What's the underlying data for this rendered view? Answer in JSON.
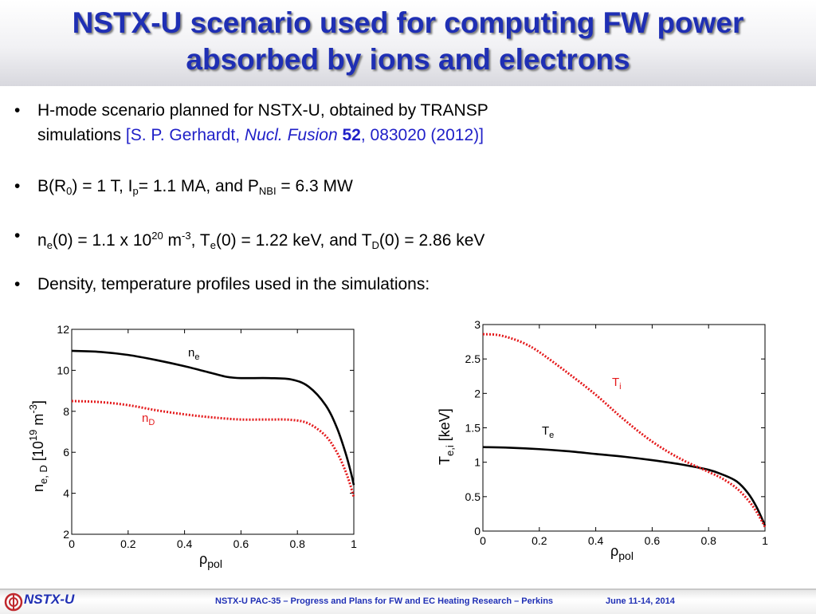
{
  "title": {
    "line1": "NSTX-U scenario used for computing FW power",
    "line2": "absorbed by ions and electrons"
  },
  "bullets": {
    "b1_line1": "H-mode scenario planned for NSTX-U, obtained by TRANSP",
    "b1_line2_text": "simulations ",
    "b1_cite_a": "[S. P. Gerhardt, ",
    "b1_cite_journal": "Nucl. Fusion",
    "b1_cite_vol": "52",
    "b1_cite_b": ", 083020 (2012)]",
    "b2_t1": "B(R",
    "b2_sub1": "0",
    "b2_t2": ") = 1 T,  I",
    "b2_sub2": "p",
    "b2_t3": "= 1.1 MA, and P",
    "b2_sub3": "NBI",
    "b2_t4": " = 6.3 MW",
    "b3_t1": "n",
    "b3_sub1": "e",
    "b3_t2": "(0) = 1.1 x 10",
    "b3_sup1": "20",
    "b3_t3": " m",
    "b3_sup2": "-3",
    "b3_t4": ", T",
    "b3_sub2": "e",
    "b3_t5": "(0) = 1.22 keV, and T",
    "b3_sub3": "D",
    "b3_t6": "(0) = 2.86 keV",
    "b4": "Density, temperature profiles used in the simulations:",
    "marker": "•"
  },
  "footer": {
    "logo": "NSTX-U",
    "text": "NSTX-U PAC-35 – Progress and Plans for FW and EC Heating Research – Perkins",
    "date": "June 11-14, 2014"
  },
  "chart_data": [
    {
      "type": "line",
      "xlabel": "ρpol",
      "ylabel": "ne, D [10^19 m^-3]",
      "xlim": [
        0,
        1
      ],
      "ylim": [
        2,
        12
      ],
      "xticks": [
        "0",
        "0.2",
        "0.4",
        "0.6",
        "0.8",
        "1"
      ],
      "yticks": [
        "2",
        "4",
        "6",
        "8",
        "10",
        "12"
      ],
      "series": [
        {
          "name": "ne",
          "style": "solid",
          "color": "#000000",
          "x": [
            0,
            0.1,
            0.2,
            0.3,
            0.4,
            0.5,
            0.55,
            0.6,
            0.7,
            0.78,
            0.84,
            0.9,
            0.94,
            0.97,
            0.99,
            1.0
          ],
          "y": [
            10.95,
            10.9,
            10.75,
            10.5,
            10.2,
            9.85,
            9.68,
            9.62,
            9.62,
            9.55,
            9.2,
            8.3,
            7.2,
            6.0,
            5.0,
            4.4
          ]
        },
        {
          "name": "nD",
          "style": "dotted",
          "color": "#e41a1c",
          "x": [
            0,
            0.1,
            0.2,
            0.3,
            0.4,
            0.5,
            0.6,
            0.7,
            0.78,
            0.84,
            0.9,
            0.94,
            0.97,
            0.99,
            1.0
          ],
          "y": [
            8.5,
            8.45,
            8.3,
            8.05,
            7.85,
            7.7,
            7.6,
            7.6,
            7.58,
            7.4,
            6.8,
            6.0,
            5.1,
            4.3,
            3.8
          ]
        }
      ]
    },
    {
      "type": "line",
      "xlabel": "ρpol",
      "ylabel": "Te,i [keV]",
      "xlim": [
        0,
        1
      ],
      "ylim": [
        0,
        3
      ],
      "xticks": [
        "0",
        "0.2",
        "0.4",
        "0.6",
        "0.8",
        "1"
      ],
      "yticks": [
        "0",
        "0.5",
        "1",
        "1.5",
        "2",
        "2.5",
        "3"
      ],
      "series": [
        {
          "name": "Te",
          "style": "solid",
          "color": "#000000",
          "x": [
            0,
            0.1,
            0.2,
            0.3,
            0.4,
            0.5,
            0.6,
            0.7,
            0.8,
            0.85,
            0.9,
            0.94,
            0.97,
            1.0
          ],
          "y": [
            1.22,
            1.21,
            1.19,
            1.16,
            1.12,
            1.08,
            1.03,
            0.97,
            0.89,
            0.82,
            0.72,
            0.55,
            0.35,
            0.08
          ]
        },
        {
          "name": "Ti",
          "style": "dotted",
          "color": "#e41a1c",
          "x": [
            0,
            0.05,
            0.1,
            0.15,
            0.2,
            0.3,
            0.4,
            0.5,
            0.6,
            0.7,
            0.8,
            0.85,
            0.9,
            0.94,
            0.97,
            1.0
          ],
          "y": [
            2.86,
            2.85,
            2.8,
            2.72,
            2.6,
            2.3,
            1.98,
            1.62,
            1.3,
            1.05,
            0.86,
            0.76,
            0.62,
            0.45,
            0.28,
            0.06
          ]
        }
      ]
    }
  ]
}
